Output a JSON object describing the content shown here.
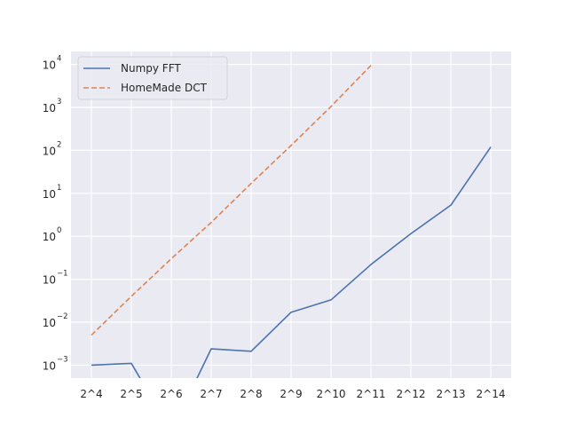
{
  "chart_data": {
    "type": "line",
    "title": "",
    "xlabel": "",
    "ylabel": "",
    "x_tick_labels": [
      "2^4",
      "2^5",
      "2^6",
      "2^7",
      "2^8",
      "2^9",
      "2^10",
      "2^11",
      "2^12",
      "2^13",
      "2^14"
    ],
    "yscale": "log",
    "ylim": [
      0.0005,
      20000
    ],
    "y_ticks": [
      {
        "base": "10",
        "exp": "−3",
        "value": 0.001
      },
      {
        "base": "10",
        "exp": "−2",
        "value": 0.01
      },
      {
        "base": "10",
        "exp": "−1",
        "value": 0.1
      },
      {
        "base": "10",
        "exp": "0",
        "value": 1
      },
      {
        "base": "10",
        "exp": "1",
        "value": 10
      },
      {
        "base": "10",
        "exp": "2",
        "value": 100
      },
      {
        "base": "10",
        "exp": "3",
        "value": 1000
      },
      {
        "base": "10",
        "exp": "4",
        "value": 10000
      }
    ],
    "grid": true,
    "legend": "top-left",
    "series": [
      {
        "name": "Numpy FFT",
        "color": "#4c72b0",
        "style": "solid",
        "x": [
          "2^4",
          "2^5",
          "2^6",
          "2^7",
          "2^8",
          "2^9",
          "2^10",
          "2^11",
          "2^12",
          "2^13",
          "2^14"
        ],
        "values": [
          0.001,
          0.0011,
          0,
          0.0024,
          0.0021,
          0.017,
          0.033,
          0.22,
          1.15,
          5.3,
          120
        ]
      },
      {
        "name": "HomeMade DCT",
        "color": "#dd8452",
        "style": "dashed",
        "x": [
          "2^4",
          "2^5",
          "2^6",
          "2^7",
          "2^8",
          "2^9",
          "2^10",
          "2^11"
        ],
        "values": [
          0.005,
          0.04,
          0.3,
          2.1,
          17,
          130,
          1050,
          9500
        ]
      }
    ]
  }
}
